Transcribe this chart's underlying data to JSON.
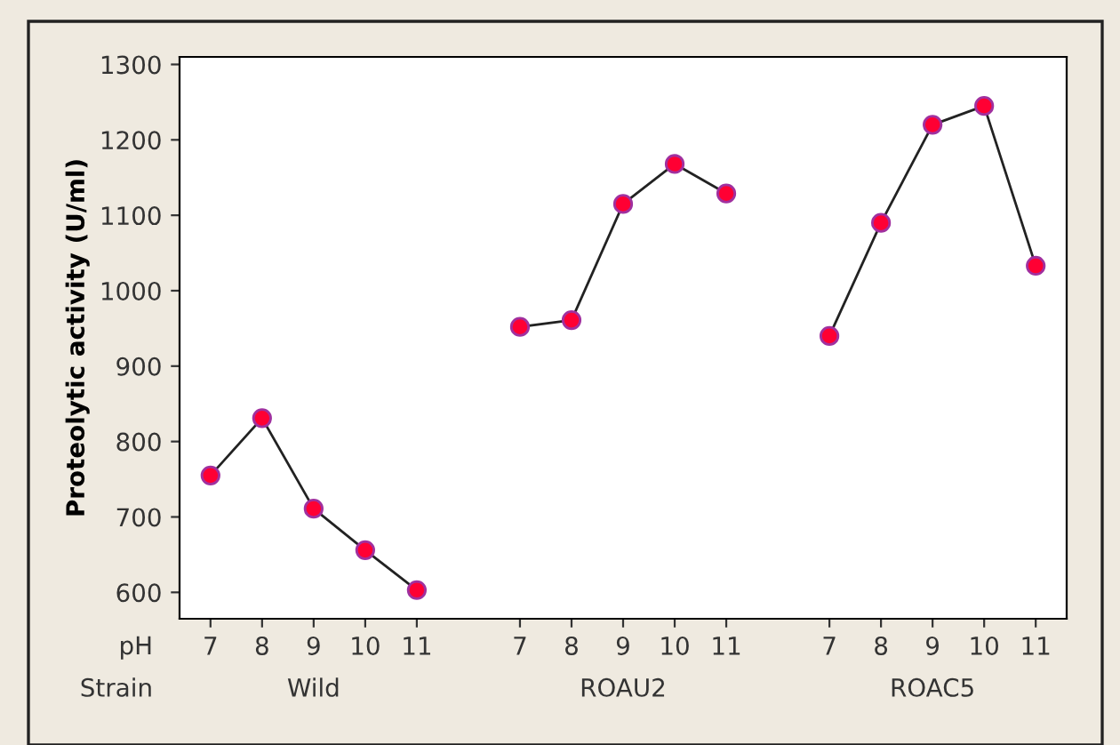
{
  "chart_data": {
    "type": "line",
    "ylabel": "Proteolytic activity (U/ml)",
    "categories": [
      "7",
      "8",
      "9",
      "10",
      "11",
      null,
      "7",
      "8",
      "9",
      "10",
      "11",
      null,
      "7",
      "8",
      "9",
      "10",
      "11"
    ],
    "series": [
      {
        "color": "#ff0033",
        "values": [
          755,
          831,
          711,
          656,
          603,
          null,
          null,
          null,
          null,
          null,
          null,
          null,
          null,
          null,
          null,
          null,
          null
        ]
      },
      {
        "color": "#ff0033",
        "values": [
          null,
          null,
          null,
          null,
          null,
          null,
          952,
          961,
          1115,
          1168,
          1129,
          null,
          null,
          null,
          null,
          null,
          null
        ]
      },
      {
        "color": "#ff0033",
        "values": [
          null,
          null,
          null,
          null,
          null,
          null,
          null,
          null,
          null,
          null,
          null,
          null,
          940,
          1090,
          1220,
          1245,
          1033
        ]
      }
    ],
    "ylim": [
      565,
      1310
    ],
    "yticks": [
      600,
      700,
      800,
      900,
      1000,
      1100,
      1200,
      1300
    ],
    "marker": "circle",
    "line_style": "solid",
    "grid": false,
    "legend": false,
    "annotations": [
      "pH",
      "Strain",
      "Wild",
      "ROAU2",
      "ROAC5"
    ]
  }
}
